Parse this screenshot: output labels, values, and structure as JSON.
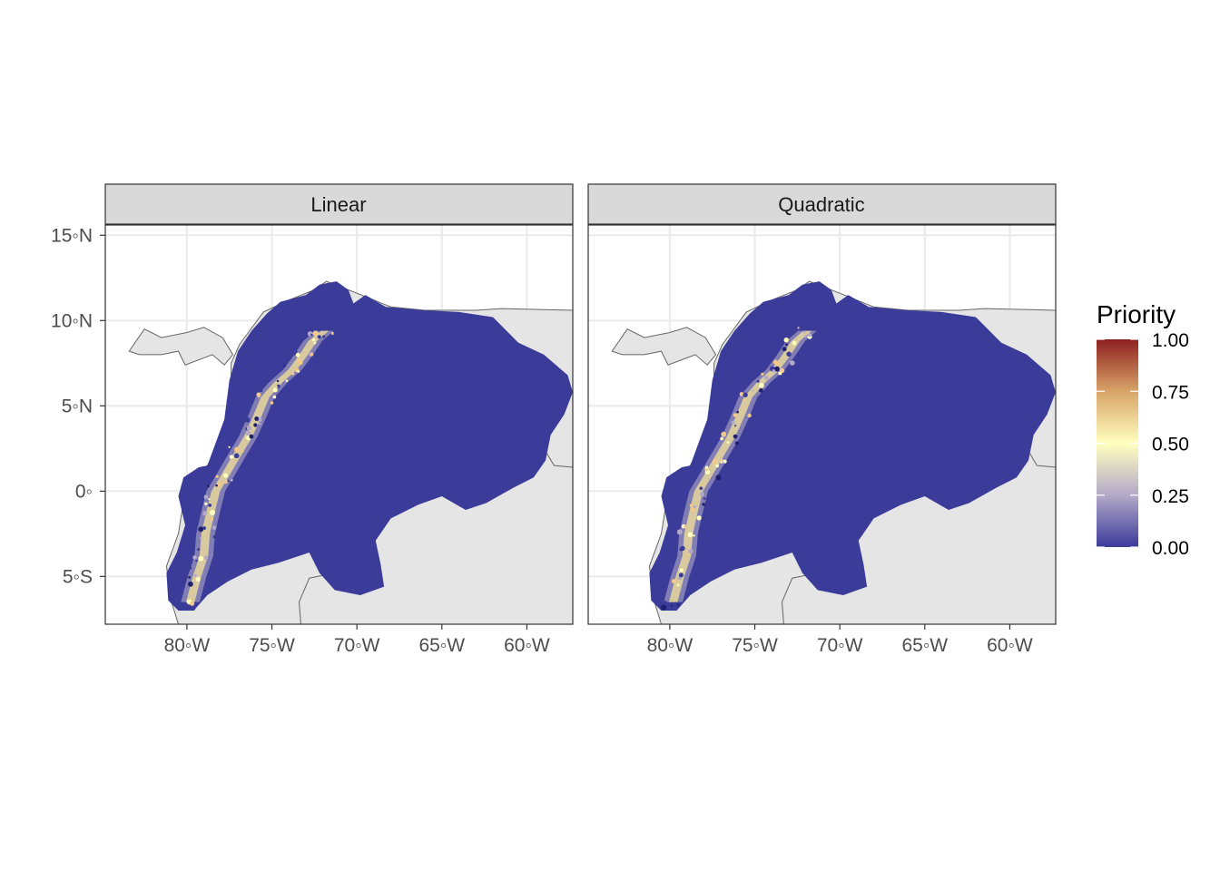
{
  "chart_data": {
    "type": "heatmap",
    "panels": [
      {
        "name": "Linear"
      },
      {
        "name": "Quadratic"
      }
    ],
    "x_ticks": [
      {
        "value": -80,
        "label": "80◦W"
      },
      {
        "value": -75,
        "label": "75◦W"
      },
      {
        "value": -70,
        "label": "70◦W"
      },
      {
        "value": -65,
        "label": "65◦W"
      },
      {
        "value": -60,
        "label": "60◦W"
      }
    ],
    "y_ticks": [
      {
        "value": 15,
        "label": "15◦N"
      },
      {
        "value": 10,
        "label": "10◦N"
      },
      {
        "value": 5,
        "label": "5◦N"
      },
      {
        "value": 0,
        "label": "0◦"
      },
      {
        "value": -5,
        "label": "5◦S"
      }
    ],
    "xlim": [
      -84.8,
      -57.3
    ],
    "ylim": [
      -7.8,
      15.6
    ],
    "grid": true,
    "legend": {
      "title": "Priority",
      "position": "right",
      "breaks": [
        {
          "value": 1.0,
          "label": "1.00"
        },
        {
          "value": 0.75,
          "label": "0.75"
        },
        {
          "value": 0.5,
          "label": "0.50"
        },
        {
          "value": 0.25,
          "label": "0.25"
        },
        {
          "value": 0.0,
          "label": "0.00"
        }
      ],
      "colors": [
        "#3b3b9a",
        "#b3a9c8",
        "#ffffbf",
        "#d8a468",
        "#8e2020"
      ]
    },
    "colors": {
      "priority_low": "#3b3b9a",
      "land": "#e5e5e5",
      "land_border": "#666666",
      "grid": "#ebebeb",
      "strip": "#d9d9d9"
    }
  }
}
